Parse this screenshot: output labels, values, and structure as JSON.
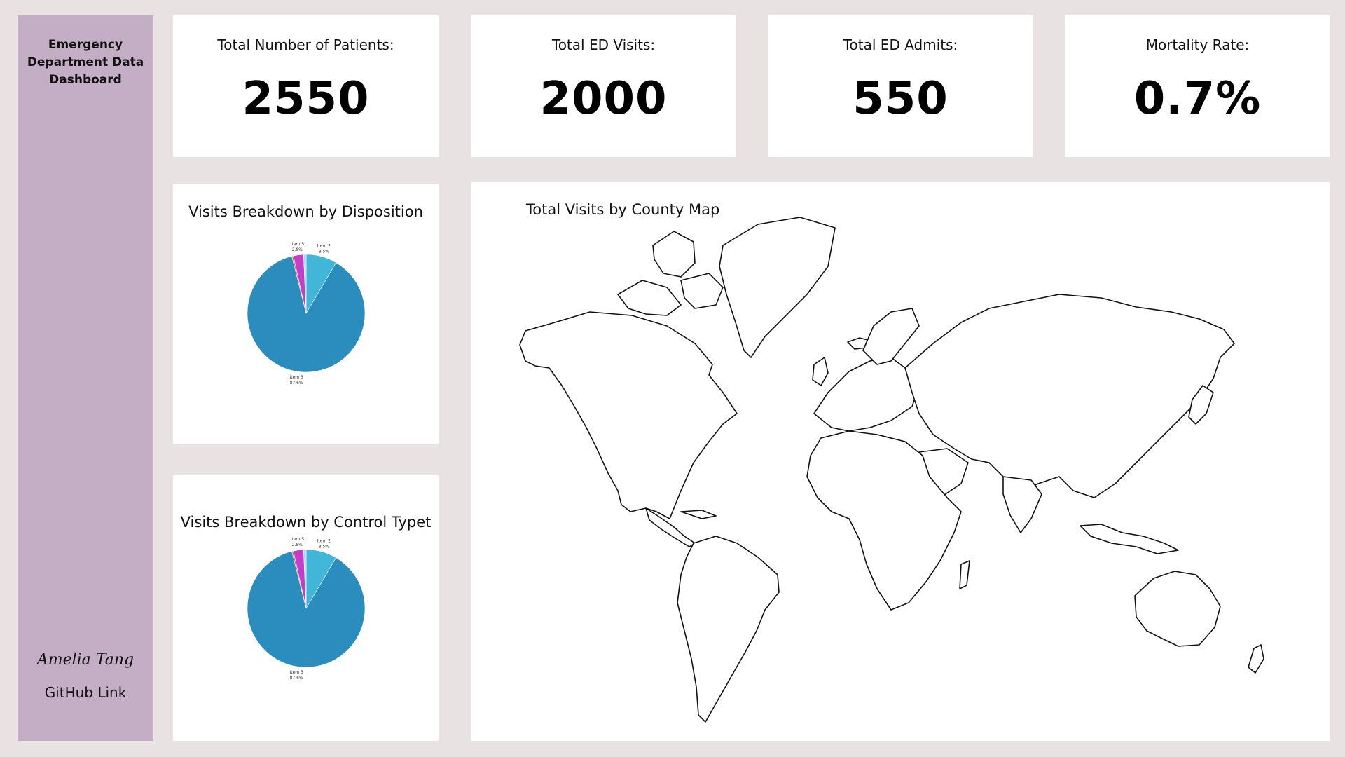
{
  "sidebar": {
    "title": "Emergency Department Data Dashboard",
    "signature": "Amelia Tang",
    "github_label": "GitHub Link"
  },
  "kpis": [
    {
      "label": "Total Number of Patients:",
      "value": "2550"
    },
    {
      "label": "Total ED Visits:",
      "value": "2000"
    },
    {
      "label": "Total ED Admits:",
      "value": "550"
    },
    {
      "label": "Mortality Rate:",
      "value": "0.7%"
    }
  ],
  "panels": {
    "disposition_title": "Visits Breakdown by Disposition",
    "control_title": "Visits Breakdown by Control Typet",
    "map_title": "Total Visits by County Map"
  },
  "colors": {
    "sidebar": "#c4aec6",
    "background": "#e8e2e3",
    "item3": "#2b8cbe",
    "item2": "#41b6d8",
    "item5": "#c040c8",
    "item_small": "#e05a5a"
  },
  "chart_data": [
    {
      "type": "pie",
      "title": "Visits Breakdown by Disposition",
      "slices": [
        {
          "name": "Item 2",
          "pct_label": "8.5%",
          "value": 8.5,
          "color": "#41b6d8"
        },
        {
          "name": "Item 3",
          "pct_label": "87.6%",
          "value": 87.6,
          "color": "#2b8cbe"
        },
        {
          "name": "",
          "pct_label": "",
          "value": 0.4,
          "color": "#e05a5a"
        },
        {
          "name": "Item 5",
          "pct_label": "2.8%",
          "value": 2.8,
          "color": "#c040c8"
        },
        {
          "name": "",
          "pct_label": "",
          "value": 0.7,
          "color": "#9fd6ea"
        }
      ]
    },
    {
      "type": "pie",
      "title": "Visits Breakdown by Control Typet",
      "slices": [
        {
          "name": "Item 2",
          "pct_label": "8.5%",
          "value": 8.5,
          "color": "#41b6d8"
        },
        {
          "name": "Item 3",
          "pct_label": "87.6%",
          "value": 87.6,
          "color": "#2b8cbe"
        },
        {
          "name": "",
          "pct_label": "",
          "value": 0.4,
          "color": "#e05a5a"
        },
        {
          "name": "Item 5",
          "pct_label": "2.8%",
          "value": 2.8,
          "color": "#c040c8"
        },
        {
          "name": "",
          "pct_label": "",
          "value": 0.7,
          "color": "#9fd6ea"
        }
      ]
    }
  ]
}
